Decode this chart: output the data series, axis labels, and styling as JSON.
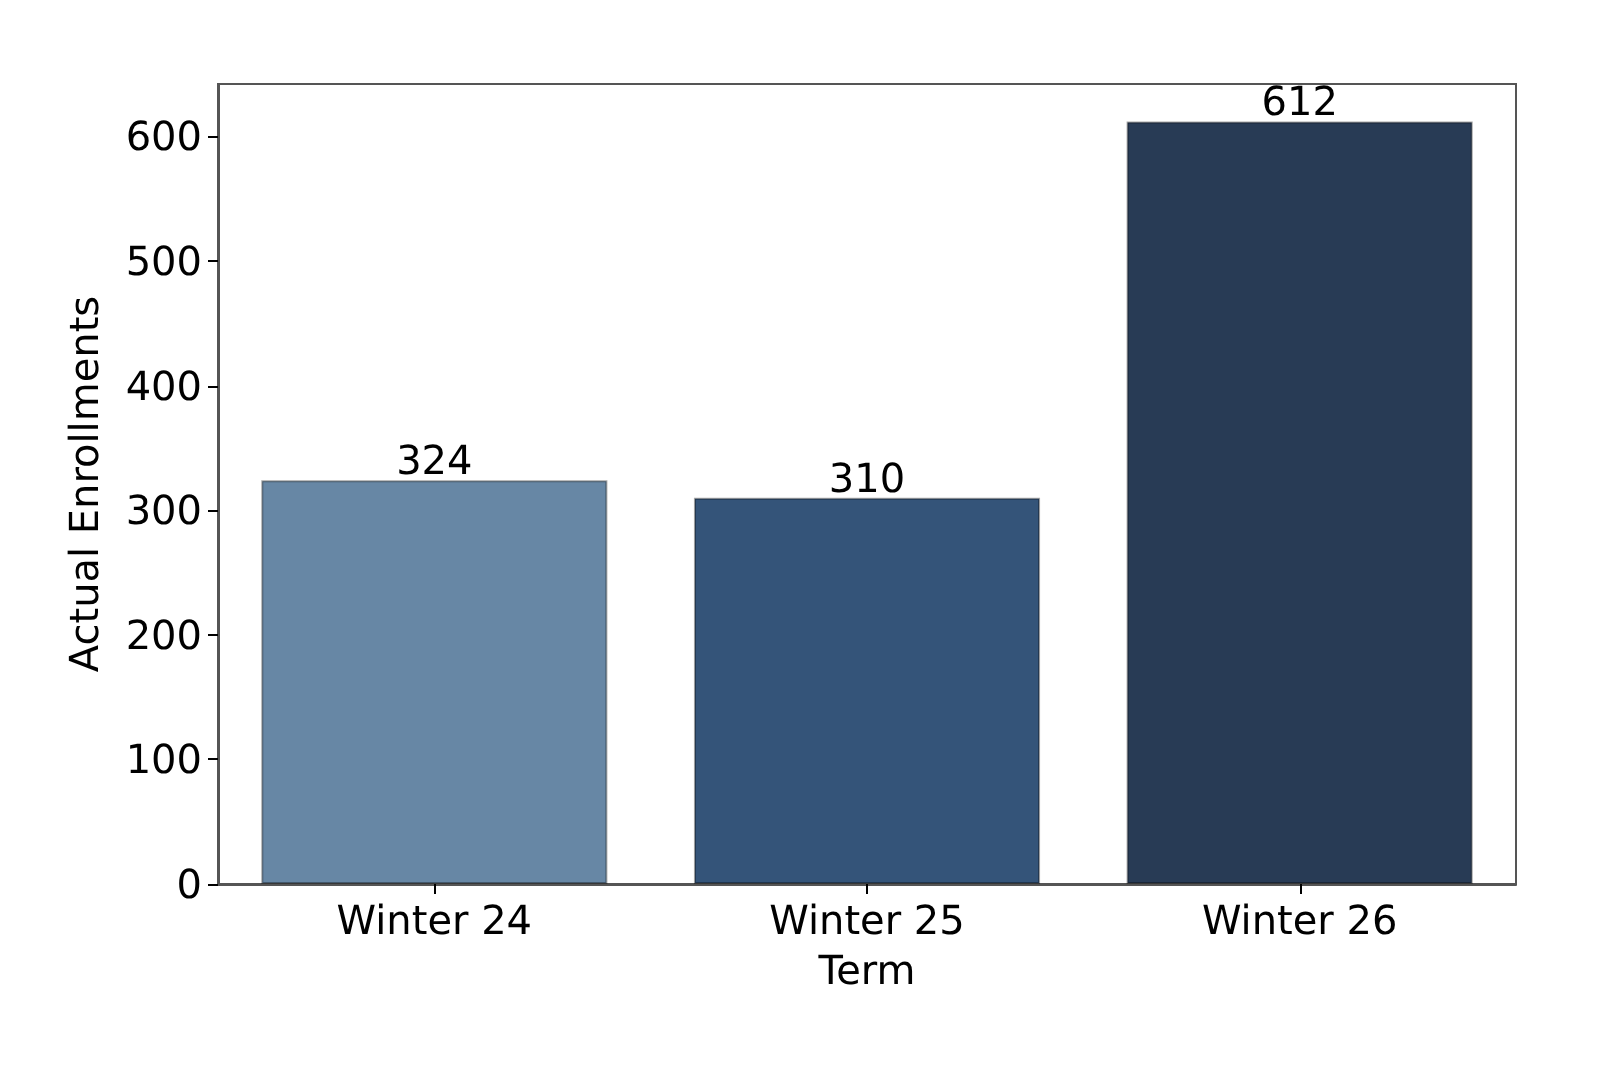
{
  "chart_data": {
    "type": "bar",
    "xlabel": "Term",
    "ylabel": "Actual Enrollments",
    "categories": [
      "Winter 24",
      "Winter 25",
      "Winter 26"
    ],
    "values": [
      324,
      310,
      612
    ],
    "colors": [
      "#6787a5",
      "#345479",
      "#283b55"
    ],
    "ylim": [
      0,
      642
    ],
    "yticks": [
      0,
      100,
      200,
      300,
      400,
      500,
      600
    ],
    "data_labels": true
  }
}
